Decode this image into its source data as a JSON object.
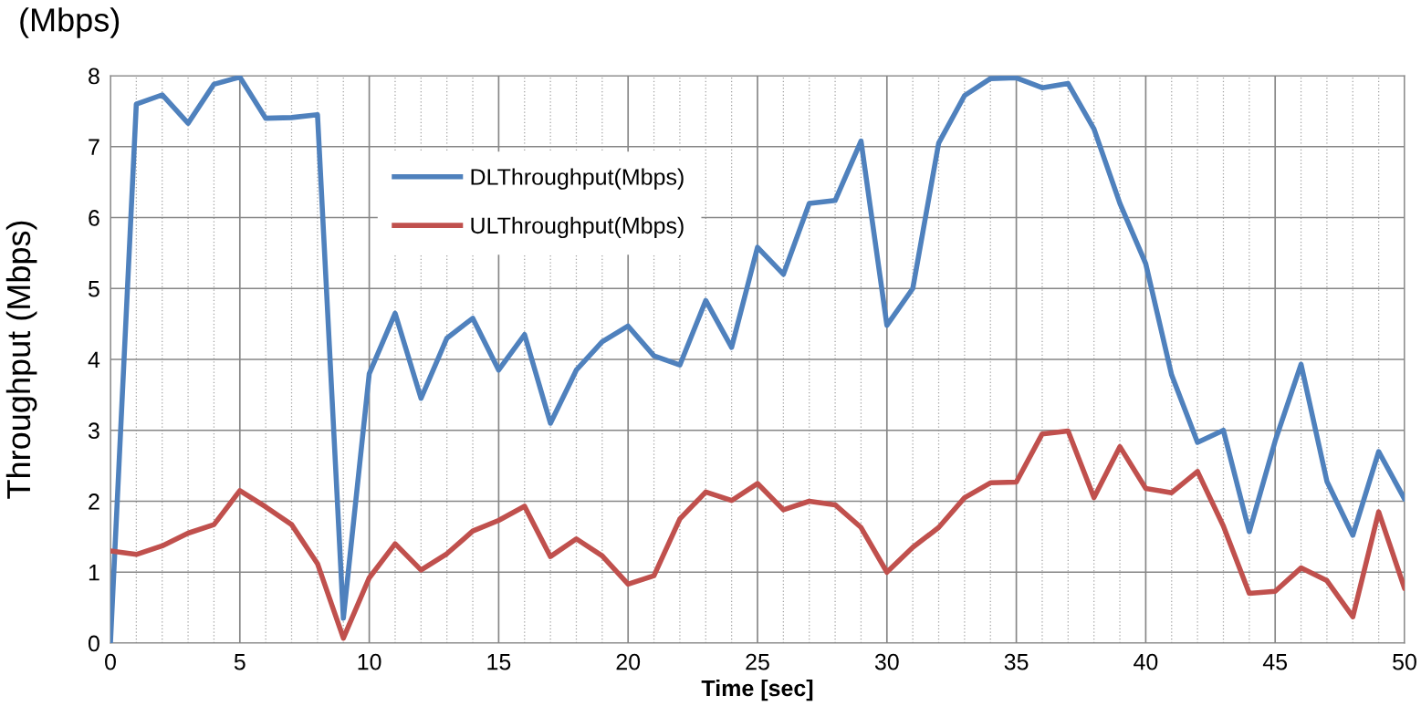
{
  "chart_data": {
    "type": "line",
    "xlabel": "Time [sec]",
    "ylabel": "Throughput (Mbps)",
    "annotations": [
      "(Mbps)"
    ],
    "x": [
      0,
      1,
      2,
      3,
      4,
      5,
      6,
      7,
      8,
      9,
      10,
      11,
      12,
      13,
      14,
      15,
      16,
      17,
      18,
      19,
      20,
      21,
      22,
      23,
      24,
      25,
      26,
      27,
      28,
      29,
      30,
      31,
      32,
      33,
      34,
      35,
      36,
      37,
      38,
      39,
      40,
      41,
      42,
      43,
      44,
      45,
      46,
      47,
      48,
      49,
      50
    ],
    "series": [
      {
        "name": "DLThroughput(Mbps)",
        "color": "#4f81bd",
        "values": [
          0,
          7.6,
          7.73,
          7.33,
          7.88,
          7.98,
          7.4,
          7.41,
          7.45,
          0.35,
          3.8,
          4.65,
          3.45,
          4.3,
          4.58,
          3.85,
          4.35,
          3.1,
          3.85,
          4.25,
          4.47,
          4.05,
          3.92,
          4.83,
          4.17,
          5.58,
          5.2,
          6.2,
          6.24,
          7.08,
          4.48,
          5.0,
          7.05,
          7.72,
          7.96,
          7.97,
          7.83,
          7.89,
          7.25,
          6.2,
          5.35,
          3.78,
          2.83,
          3.0,
          1.57,
          2.85,
          3.93,
          2.28,
          1.52,
          2.7,
          2.03
        ]
      },
      {
        "name": "ULThroughput(Mbps)",
        "color": "#c0504d",
        "values": [
          1.3,
          1.25,
          1.37,
          1.55,
          1.67,
          2.15,
          1.92,
          1.67,
          1.12,
          0.07,
          0.92,
          1.4,
          1.03,
          1.26,
          1.58,
          1.73,
          1.93,
          1.22,
          1.47,
          1.23,
          0.83,
          0.95,
          1.75,
          2.13,
          2.01,
          2.25,
          1.88,
          2.0,
          1.95,
          1.63,
          1.0,
          1.35,
          1.63,
          2.05,
          2.26,
          2.27,
          2.95,
          2.99,
          2.05,
          2.77,
          2.18,
          2.12,
          2.42,
          1.65,
          0.7,
          0.73,
          1.06,
          0.88,
          0.37,
          1.85,
          0.77
        ]
      }
    ],
    "xlim": [
      0,
      50
    ],
    "xticks": [
      0,
      5,
      10,
      15,
      20,
      25,
      30,
      35,
      40,
      45,
      50
    ],
    "ylim": [
      0,
      8
    ],
    "yticks": [
      0,
      1,
      2,
      3,
      4,
      5,
      6,
      7,
      8
    ],
    "grid": true,
    "legend": "top center",
    "marker": "none",
    "line_style": "solid"
  }
}
